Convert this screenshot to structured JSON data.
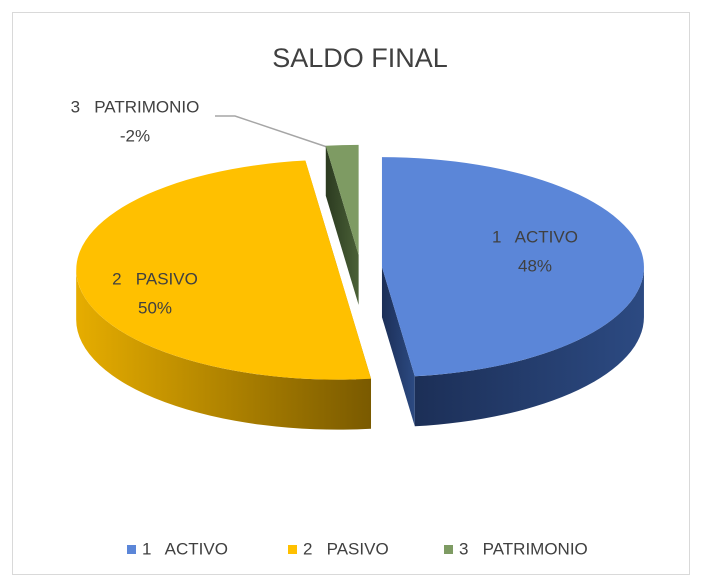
{
  "chart_data": {
    "type": "pie",
    "title": "SALDO FINAL",
    "categories": [
      "1   ACTIVO",
      "2   PASIVO",
      "3   PATRIMONIO"
    ],
    "values": [
      48,
      50,
      -2
    ],
    "value_labels": [
      "48%",
      "50%",
      "-2%"
    ],
    "colors": [
      "#5b86d8",
      "#ffc000",
      "#7e9b63"
    ],
    "legend": "bottom"
  }
}
